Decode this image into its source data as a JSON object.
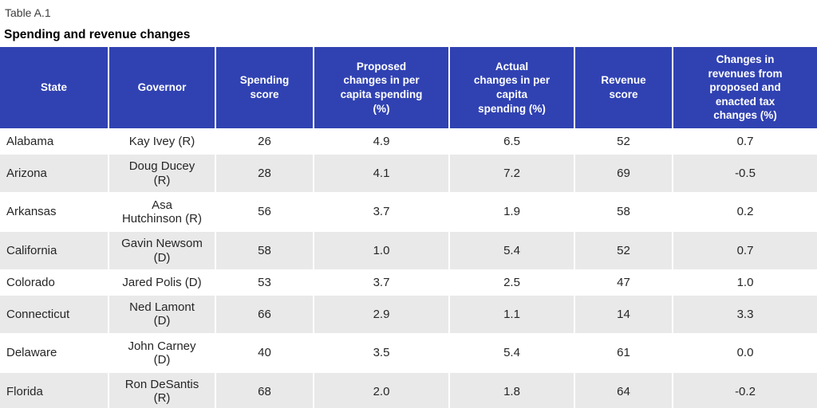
{
  "document": {
    "table_label": "Table A.1",
    "table_title": "Spending and revenue changes"
  },
  "colors": {
    "header_bg": "#3042b2",
    "header_text": "#ffffff",
    "row_alt_bg": "#e9e9e9",
    "row_bg": "#ffffff",
    "body_text": "#262626",
    "label_text": "#3d3d3d",
    "title_text": "#000000"
  },
  "chart_data": {
    "type": "table",
    "table_number": "Table A.1",
    "title": "Spending and revenue changes",
    "columns": [
      "State",
      "Governor",
      "Spending score",
      "Proposed changes in per capita spending (%)",
      "Actual changes in per capita spending (%)",
      "Revenue score",
      "Changes in revenues from proposed and enacted tax changes (%)"
    ],
    "header_display": [
      "State",
      "Governor",
      "Spending\nscore",
      "Proposed\nchanges in per\ncapita spending\n(%)",
      "Actual\nchanges in per\ncapita\nspending (%)",
      "Revenue\nscore",
      "Changes in\nrevenues from\nproposed and\nenacted tax\nchanges (%)"
    ],
    "rows": [
      {
        "state": "Alabama",
        "governor": "Kay Ivey (R)",
        "spending_score": "26",
        "proposed_change": "4.9",
        "actual_change": "6.5",
        "revenue_score": "52",
        "tax_change": "0.7"
      },
      {
        "state": "Arizona",
        "governor": "Doug Ducey (R)",
        "spending_score": "28",
        "proposed_change": "4.1",
        "actual_change": "7.2",
        "revenue_score": "69",
        "tax_change": "-0.5"
      },
      {
        "state": "Arkansas",
        "governor": "Asa Hutchinson (R)",
        "spending_score": "56",
        "proposed_change": "3.7",
        "actual_change": "1.9",
        "revenue_score": "58",
        "tax_change": "0.2"
      },
      {
        "state": "California",
        "governor": "Gavin Newsom (D)",
        "spending_score": "58",
        "proposed_change": "1.0",
        "actual_change": "5.4",
        "revenue_score": "52",
        "tax_change": "0.7"
      },
      {
        "state": "Colorado",
        "governor": "Jared Polis (D)",
        "spending_score": "53",
        "proposed_change": "3.7",
        "actual_change": "2.5",
        "revenue_score": "47",
        "tax_change": "1.0"
      },
      {
        "state": "Connecticut",
        "governor": "Ned Lamont (D)",
        "spending_score": "66",
        "proposed_change": "2.9",
        "actual_change": "1.1",
        "revenue_score": "14",
        "tax_change": "3.3"
      },
      {
        "state": "Delaware",
        "governor": "John Carney (D)",
        "spending_score": "40",
        "proposed_change": "3.5",
        "actual_change": "5.4",
        "revenue_score": "61",
        "tax_change": "0.0"
      },
      {
        "state": "Florida",
        "governor": "Ron DeSantis (R)",
        "spending_score": "68",
        "proposed_change": "2.0",
        "actual_change": "1.8",
        "revenue_score": "64",
        "tax_change": "-0.2"
      }
    ]
  }
}
